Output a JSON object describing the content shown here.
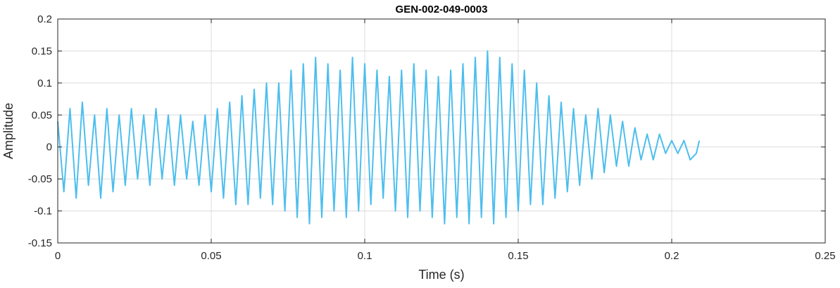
{
  "chart_data": {
    "type": "line",
    "title": "GEN-002-049-0003",
    "xlabel": "Time (s)",
    "ylabel": "Amplitude",
    "xlim": [
      0,
      0.25
    ],
    "ylim": [
      -0.15,
      0.2
    ],
    "grid": true,
    "xticks": [
      0,
      0.05,
      0.1,
      0.15,
      0.2,
      0.25
    ],
    "xtick_labels": [
      "0",
      "0.05",
      "0.1",
      "0.15",
      "0.2",
      "0.25"
    ],
    "yticks": [
      -0.15,
      -0.1,
      -0.05,
      0,
      0.05,
      0.1,
      0.15,
      0.2
    ],
    "ytick_labels": [
      "-0.15",
      "-0.1",
      "-0.05",
      "0",
      "0.05",
      "0.1",
      "0.15",
      "0.2"
    ],
    "series": [
      {
        "color": "#4DBEEE",
        "x": [
          0.0,
          0.002,
          0.004,
          0.006,
          0.008,
          0.01,
          0.012,
          0.014,
          0.016,
          0.018,
          0.02,
          0.022,
          0.024,
          0.026,
          0.028,
          0.03,
          0.032,
          0.034,
          0.036,
          0.038,
          0.04,
          0.042,
          0.044,
          0.046,
          0.048,
          0.05,
          0.052,
          0.054,
          0.056,
          0.058,
          0.06,
          0.062,
          0.064,
          0.066,
          0.068,
          0.07,
          0.072,
          0.074,
          0.076,
          0.078,
          0.08,
          0.082,
          0.084,
          0.086,
          0.088,
          0.09,
          0.092,
          0.094,
          0.096,
          0.098,
          0.1,
          0.102,
          0.104,
          0.106,
          0.108,
          0.11,
          0.112,
          0.114,
          0.116,
          0.118,
          0.12,
          0.122,
          0.124,
          0.126,
          0.128,
          0.13,
          0.132,
          0.134,
          0.136,
          0.138,
          0.14,
          0.142,
          0.144,
          0.146,
          0.148,
          0.15,
          0.152,
          0.154,
          0.156,
          0.158,
          0.16,
          0.162,
          0.164,
          0.166,
          0.168,
          0.17,
          0.172,
          0.174,
          0.176,
          0.178,
          0.18,
          0.182,
          0.184,
          0.186,
          0.188,
          0.19,
          0.192,
          0.194,
          0.196,
          0.198,
          0.2,
          0.202,
          0.204,
          0.206,
          0.208,
          0.209
        ],
        "y": [
          0.04,
          -0.07,
          0.06,
          -0.08,
          0.07,
          -0.06,
          0.05,
          -0.08,
          0.06,
          -0.07,
          0.05,
          -0.06,
          0.06,
          -0.05,
          0.05,
          -0.06,
          0.06,
          -0.05,
          0.05,
          -0.06,
          0.05,
          -0.05,
          0.04,
          -0.06,
          0.05,
          -0.07,
          0.06,
          -0.08,
          0.07,
          -0.09,
          0.08,
          -0.09,
          0.09,
          -0.08,
          0.1,
          -0.09,
          0.1,
          -0.1,
          0.12,
          -0.11,
          0.13,
          -0.12,
          0.14,
          -0.11,
          0.13,
          -0.1,
          0.12,
          -0.11,
          0.14,
          -0.1,
          0.13,
          -0.09,
          0.12,
          -0.08,
          0.11,
          -0.1,
          0.12,
          -0.11,
          0.13,
          -0.1,
          0.12,
          -0.11,
          0.11,
          -0.12,
          0.12,
          -0.11,
          0.13,
          -0.12,
          0.14,
          -0.11,
          0.15,
          -0.12,
          0.14,
          -0.11,
          0.13,
          -0.1,
          0.12,
          -0.09,
          0.1,
          -0.09,
          0.08,
          -0.08,
          0.07,
          -0.07,
          0.06,
          -0.06,
          0.05,
          -0.05,
          0.06,
          -0.04,
          0.05,
          -0.03,
          0.04,
          -0.03,
          0.03,
          -0.02,
          0.02,
          -0.02,
          0.02,
          -0.01,
          0.01,
          -0.01,
          0.01,
          -0.02,
          -0.01,
          0.01
        ]
      }
    ]
  }
}
